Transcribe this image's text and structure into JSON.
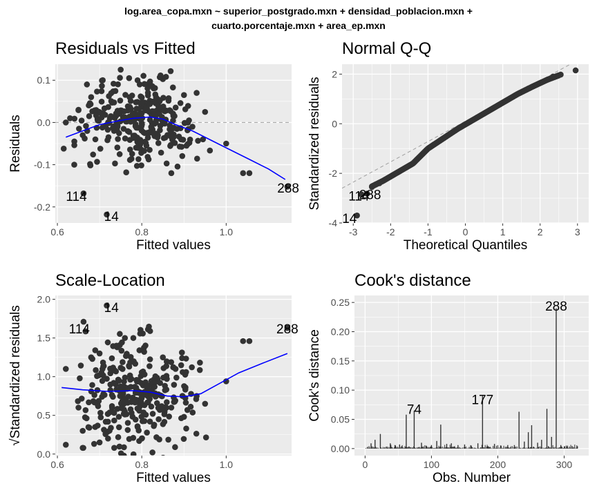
{
  "main_title_line1": "log.area_copa.mxn ~ superior_postgrado.mxn + densidad_poblacion.mxn +",
  "main_title_line2": "cuarto.porcentaje.mxn + area_ep.mxn",
  "colors": {
    "panel_bg": "#ebebeb",
    "grid": "#ffffff",
    "points": "#333333",
    "smooth": "#0000ff",
    "refline": "#9e9e9e",
    "text": "#000000",
    "tick_text": "#4d4d4d"
  },
  "chart_data": [
    {
      "id": "resid",
      "type": "scatter",
      "title": "Residuals vs Fitted",
      "xlabel": "Fitted values",
      "ylabel": "Residuals",
      "xlim": [
        0.595,
        1.155
      ],
      "ylim": [
        -0.238,
        0.138
      ],
      "xticks": [
        0.6,
        0.8,
        1.0
      ],
      "xticklabels": [
        "0.6",
        "0.8",
        "1.0"
      ],
      "yticks": [
        -0.2,
        -0.1,
        0.0,
        0.1
      ],
      "yticklabels": [
        "-0.2",
        "-0.1",
        "0.0",
        "0.1"
      ],
      "hline": 0,
      "smooth": [
        [
          0.62,
          -0.035
        ],
        [
          0.66,
          -0.02
        ],
        [
          0.7,
          -0.005
        ],
        [
          0.74,
          0.003
        ],
        [
          0.78,
          0.01
        ],
        [
          0.82,
          0.013
        ],
        [
          0.85,
          0.008
        ],
        [
          0.88,
          -0.005
        ],
        [
          0.92,
          -0.02
        ],
        [
          0.96,
          -0.04
        ],
        [
          1.0,
          -0.06
        ],
        [
          1.05,
          -0.085
        ],
        [
          1.1,
          -0.11
        ],
        [
          1.14,
          -0.135
        ]
      ],
      "labels": [
        {
          "text": "114",
          "x": 0.645,
          "y": -0.174
        },
        {
          "text": "14",
          "x": 0.728,
          "y": -0.222
        },
        {
          "text": "288",
          "x": 1.147,
          "y": -0.155
        }
      ],
      "points": [
        [
          0.62,
          0.0
        ],
        [
          0.615,
          -0.062
        ],
        [
          0.662,
          -0.168
        ],
        [
          0.717,
          -0.218
        ],
        [
          1.145,
          -0.152
        ],
        [
          1.04,
          -0.12
        ],
        [
          1.055,
          -0.12
        ],
        [
          1.0,
          -0.05
        ],
        [
          0.945,
          -0.04
        ],
        [
          0.92,
          -0.01
        ],
        [
          0.9,
          0.065
        ],
        [
          0.93,
          0.07
        ],
        [
          0.95,
          0.025
        ],
        [
          0.87,
          -0.12
        ],
        [
          0.65,
          0.03
        ],
        [
          0.68,
          0.06
        ],
        [
          0.69,
          -0.04
        ],
        [
          0.66,
          -0.03
        ],
        [
          0.64,
          -0.1
        ],
        [
          0.63,
          0.01
        ],
        [
          0.67,
          0.09
        ],
        [
          0.75,
          0.125
        ],
        [
          0.77,
          0.105
        ],
        [
          0.79,
          0.1
        ]
      ]
    },
    {
      "id": "qq",
      "type": "scatter",
      "title": "Normal Q-Q",
      "xlabel": "Theoretical Quantiles",
      "ylabel": "Standardized residuals",
      "xlim": [
        -3.3,
        3.3
      ],
      "ylim": [
        -4.0,
        2.4
      ],
      "xticks": [
        -3,
        -2,
        -1,
        0,
        1,
        2,
        3
      ],
      "xticklabels": [
        "-3",
        "-2",
        "-1",
        "0",
        "1",
        "2",
        "3"
      ],
      "yticks": [
        -4,
        -2,
        0,
        2
      ],
      "yticklabels": [
        "-4",
        "-2",
        "0",
        "2"
      ],
      "refline": [
        [
          -3.3,
          -2.6
        ],
        [
          3.3,
          2.8
        ]
      ],
      "qq_curve": [
        [
          -2.6,
          -2.6
        ],
        [
          -2.2,
          -2.3
        ],
        [
          -1.8,
          -1.95
        ],
        [
          -1.4,
          -1.6
        ],
        [
          -1.0,
          -1.0
        ],
        [
          -0.6,
          -0.6
        ],
        [
          -0.2,
          -0.2
        ],
        [
          0.2,
          0.15
        ],
        [
          0.6,
          0.5
        ],
        [
          1.0,
          0.85
        ],
        [
          1.4,
          1.2
        ],
        [
          1.8,
          1.5
        ],
        [
          2.2,
          1.78
        ],
        [
          2.5,
          1.95
        ]
      ],
      "labels": [
        {
          "text": "14",
          "x": -3.1,
          "y": -3.8
        },
        {
          "text": "114",
          "x": -2.85,
          "y": -2.9
        },
        {
          "text": "288",
          "x": -2.55,
          "y": -2.85
        }
      ],
      "points": [
        [
          -2.9,
          -3.7
        ],
        [
          -2.78,
          -2.85
        ],
        [
          -2.63,
          -2.82
        ],
        [
          -2.5,
          -2.55
        ],
        [
          2.95,
          2.15
        ],
        [
          2.55,
          1.98
        ],
        [
          2.35,
          1.9
        ],
        [
          -2.3,
          -2.4
        ],
        [
          -2.4,
          -2.45
        ]
      ]
    },
    {
      "id": "scale",
      "type": "scatter",
      "title": "Scale-Location",
      "xlabel": "Fitted values",
      "ylabel": "√Standardized residuals",
      "xlim": [
        0.595,
        1.155
      ],
      "ylim": [
        -0.02,
        2.05
      ],
      "xticks": [
        0.6,
        0.8,
        1.0
      ],
      "xticklabels": [
        "0.6",
        "0.8",
        "1.0"
      ],
      "yticks": [
        0.0,
        0.5,
        1.0,
        1.5,
        2.0
      ],
      "yticklabels": [
        "0.0",
        "0.5",
        "1.0",
        "1.5",
        "2.0"
      ],
      "smooth": [
        [
          0.61,
          0.86
        ],
        [
          0.66,
          0.83
        ],
        [
          0.72,
          0.81
        ],
        [
          0.78,
          0.82
        ],
        [
          0.82,
          0.8
        ],
        [
          0.86,
          0.75
        ],
        [
          0.9,
          0.74
        ],
        [
          0.94,
          0.78
        ],
        [
          0.98,
          0.9
        ],
        [
          1.03,
          1.05
        ],
        [
          1.08,
          1.16
        ],
        [
          1.145,
          1.3
        ]
      ],
      "labels": [
        {
          "text": "114",
          "x": 0.652,
          "y": 1.62
        },
        {
          "text": "14",
          "x": 0.728,
          "y": 1.9
        },
        {
          "text": "288",
          "x": 1.145,
          "y": 1.62
        }
      ],
      "points": [
        [
          0.662,
          1.71
        ],
        [
          0.717,
          1.92
        ],
        [
          1.145,
          1.63
        ],
        [
          1.04,
          1.46
        ],
        [
          1.055,
          1.46
        ],
        [
          1.0,
          0.94
        ],
        [
          0.62,
          1.1
        ],
        [
          0.62,
          0.12
        ],
        [
          0.66,
          0.08
        ],
        [
          0.95,
          0.65
        ],
        [
          0.93,
          0.75
        ],
        [
          0.9,
          0.48
        ],
        [
          0.88,
          1.1
        ],
        [
          0.85,
          1.25
        ],
        [
          0.76,
          1.5
        ],
        [
          0.78,
          1.5
        ],
        [
          0.74,
          1.4
        ],
        [
          0.7,
          1.3
        ],
        [
          0.68,
          1.25
        ],
        [
          0.65,
          0.6
        ],
        [
          0.66,
          0.3
        ],
        [
          0.7,
          0.15
        ],
        [
          0.72,
          0.2
        ],
        [
          0.8,
          0.2
        ],
        [
          0.84,
          0.45
        ],
        [
          0.87,
          0.6
        ]
      ]
    },
    {
      "id": "cook",
      "type": "bar",
      "title": "Cook's distance",
      "xlabel": "Obs. Number",
      "ylabel": "Cook's distance",
      "xlim": [
        -16,
        337
      ],
      "ylim": [
        -0.012,
        0.262
      ],
      "xticks": [
        0,
        100,
        200,
        300
      ],
      "xticklabels": [
        "0",
        "100",
        "200",
        "300"
      ],
      "yticks": [
        0.0,
        0.05,
        0.1,
        0.15,
        0.2,
        0.25
      ],
      "yticklabels": [
        "0.00",
        "0.05",
        "0.10",
        "0.15",
        "0.20",
        "0.25"
      ],
      "labels": [
        {
          "text": "288",
          "x": 288,
          "y": 0.244
        },
        {
          "text": "177",
          "x": 177,
          "y": 0.084
        },
        {
          "text": "74",
          "x": 74,
          "y": 0.068
        }
      ],
      "bars": [
        [
          288,
          0.24
        ],
        [
          177,
          0.09
        ],
        [
          74,
          0.065
        ],
        [
          62,
          0.058
        ],
        [
          114,
          0.041
        ],
        [
          232,
          0.063
        ],
        [
          251,
          0.04
        ],
        [
          274,
          0.068
        ],
        [
          246,
          0.028
        ],
        [
          23,
          0.025
        ],
        [
          15,
          0.015
        ],
        [
          9,
          0.009
        ],
        [
          38,
          0.009
        ],
        [
          45,
          0.006
        ],
        [
          52,
          0.007
        ],
        [
          85,
          0.01
        ],
        [
          92,
          0.005
        ],
        [
          100,
          0.006
        ],
        [
          108,
          0.013
        ],
        [
          123,
          0.008
        ],
        [
          130,
          0.009
        ],
        [
          140,
          0.006
        ],
        [
          150,
          0.007
        ],
        [
          160,
          0.005
        ],
        [
          170,
          0.009
        ],
        [
          185,
          0.004
        ],
        [
          195,
          0.008
        ],
        [
          205,
          0.005
        ],
        [
          215,
          0.006
        ],
        [
          225,
          0.006
        ],
        [
          240,
          0.012
        ],
        [
          260,
          0.01
        ],
        [
          266,
          0.015
        ],
        [
          281,
          0.02
        ],
        [
          295,
          0.006
        ],
        [
          305,
          0.005
        ],
        [
          312,
          0.004
        ],
        [
          320,
          0.004
        ]
      ]
    }
  ]
}
